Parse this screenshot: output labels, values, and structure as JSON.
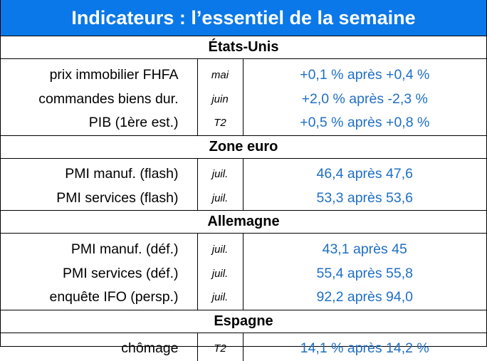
{
  "title": "Indicateurs : l’essentiel de la semaine",
  "sections": [
    {
      "name": "États-Unis",
      "rows": [
        {
          "label": "prix immobilier FHFA",
          "period": "mai",
          "value": "+0,1 % après +0,4 %"
        },
        {
          "label": "commandes biens dur.",
          "period": "juin",
          "value": "+2,0 % après -2,3 %"
        },
        {
          "label": "PIB (1ère est.)",
          "period": "T2",
          "value": "+0,5 % après +0,8 %"
        }
      ]
    },
    {
      "name": "Zone euro",
      "rows": [
        {
          "label": "PMI manuf. (flash)",
          "period": "juil.",
          "value": "46,4 après 47,6"
        },
        {
          "label": "PMI services (flash)",
          "period": "juil.",
          "value": "53,3 après 53,6"
        }
      ]
    },
    {
      "name": "Allemagne",
      "rows": [
        {
          "label": "PMI manuf. (déf.)",
          "period": "juil.",
          "value": "43,1 après 45"
        },
        {
          "label": "PMI services (déf.)",
          "period": "juil.",
          "value": "55,4 après 55,8"
        },
        {
          "label": "enquête IFO (persp.)",
          "period": "juil.",
          "value": "92,2 après 94,0"
        }
      ]
    },
    {
      "name": "Espagne",
      "rows": [
        {
          "label": "chômage",
          "period": "T2",
          "value": "14,1 % après 14,2 %"
        }
      ]
    }
  ],
  "colors": {
    "header_bg": "#0a78e8",
    "header_text": "#ffffff",
    "value_text": "#1f6fc5"
  }
}
